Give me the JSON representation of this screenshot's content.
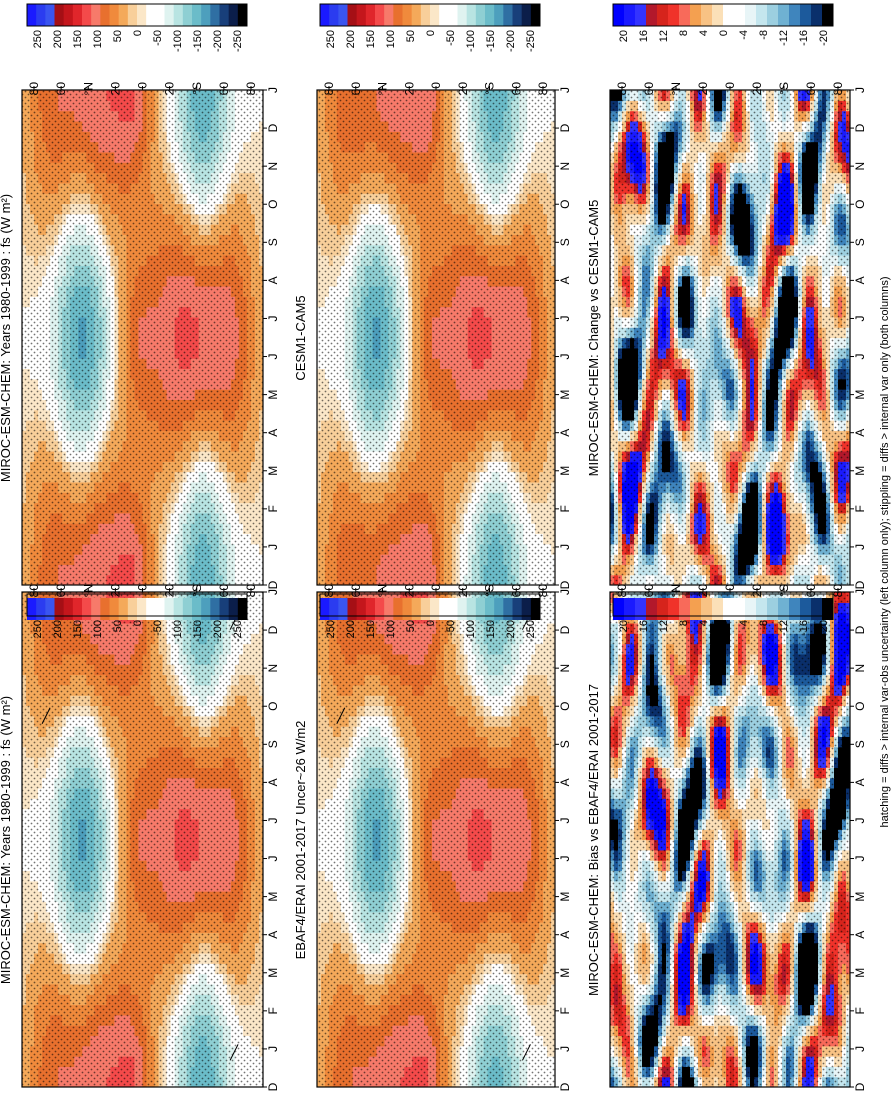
{
  "footer": "hatching = diffs > internal var-obs uncertainty (left column only); stippling = diffs > internal var only (both columns)",
  "colors": {
    "abs": [
      "#1a1aff",
      "#2b3cf0",
      "#3a55f0",
      "#a50f15",
      "#c4161c",
      "#e0262b",
      "#f44a4a",
      "#f77a6a",
      "#e8702e",
      "#f08a3c",
      "#f4a95a",
      "#f8cf9a",
      "#fbe7c8",
      "#ffffff",
      "#ffffff",
      "#dff3f0",
      "#b8e4e2",
      "#8ecfd3",
      "#6bbcc9",
      "#4d9fbd",
      "#2f6fa3",
      "#183f7a",
      "#0b1e4a",
      "#000000"
    ],
    "diff": [
      "#0000ff",
      "#1a1aff",
      "#3333ff",
      "#b2182b",
      "#d6241c",
      "#f0322a",
      "#f86a5a",
      "#f4a050",
      "#f8c284",
      "#fbe0b8",
      "#ffffff",
      "#ffffff",
      "#e8f5f7",
      "#c4e6ee",
      "#9ccfe0",
      "#6fb1d2",
      "#3f85bd",
      "#1c5a9c",
      "#0a2f6b",
      "#000000"
    ]
  },
  "chart_data": [
    {
      "type": "heatmap",
      "title": "MIROC-ESM-CHEM: Years 1980-1999 : fs (W m²)",
      "x": [
        "D",
        "J",
        "F",
        "M",
        "A",
        "M",
        "J",
        "J",
        "A",
        "S",
        "O",
        "N",
        "D",
        "J"
      ],
      "y_ticks": [
        "80",
        "60",
        "°N",
        "20",
        "0",
        "20",
        "°S",
        "60",
        "80"
      ],
      "y_range_deg": [
        90,
        -90
      ],
      "colorbar": [
        "250",
        "200",
        "150",
        "100",
        "50",
        "0",
        "-50",
        "-100",
        "-150",
        "-200",
        "-250"
      ],
      "field": "absolute",
      "hatching": true
    },
    {
      "type": "heatmap",
      "title": "MIROC-ESM-CHEM: Years 1980-1999 : fs (W m²)",
      "x": [
        "D",
        "J",
        "F",
        "M",
        "A",
        "M",
        "J",
        "J",
        "A",
        "S",
        "O",
        "N",
        "D",
        "J"
      ],
      "y_ticks": [
        "80",
        "60",
        "°N",
        "20",
        "0",
        "20",
        "°S",
        "60",
        "80"
      ],
      "y_range_deg": [
        90,
        -90
      ],
      "colorbar": [
        "250",
        "200",
        "150",
        "100",
        "50",
        "0",
        "-50",
        "-100",
        "-150",
        "-200",
        "-250"
      ],
      "field": "absolute",
      "hatching": false
    },
    {
      "type": "heatmap",
      "title": "EBAF4/ERAI 2001-2017 Uncer~26 W/m2",
      "x": [
        "D",
        "J",
        "F",
        "M",
        "A",
        "M",
        "J",
        "J",
        "A",
        "S",
        "O",
        "N",
        "D",
        "J"
      ],
      "y_ticks": [
        "80",
        "60",
        "°N",
        "20",
        "0",
        "20",
        "°S",
        "60",
        "80"
      ],
      "y_range_deg": [
        90,
        -90
      ],
      "colorbar": [
        "250",
        "200",
        "150",
        "100",
        "50",
        "0",
        "-50",
        "-100",
        "-150",
        "-200",
        "-250"
      ],
      "field": "absolute",
      "hatching": true
    },
    {
      "type": "heatmap",
      "title": "CESM1-CAM5",
      "x": [
        "D",
        "J",
        "F",
        "M",
        "A",
        "M",
        "J",
        "J",
        "A",
        "S",
        "O",
        "N",
        "D",
        "J"
      ],
      "y_ticks": [
        "80",
        "60",
        "°N",
        "20",
        "0",
        "20",
        "°S",
        "60",
        "80"
      ],
      "y_range_deg": [
        90,
        -90
      ],
      "colorbar": [
        "250",
        "200",
        "150",
        "100",
        "50",
        "0",
        "-50",
        "-100",
        "-150",
        "-200",
        "-250"
      ],
      "field": "absolute",
      "hatching": false
    },
    {
      "type": "heatmap",
      "title": "MIROC-ESM-CHEM: Bias vs EBAF4/ERAI 2001-2017",
      "x": [
        "D",
        "J",
        "F",
        "M",
        "A",
        "M",
        "J",
        "J",
        "A",
        "S",
        "O",
        "N",
        "D",
        "J"
      ],
      "y_ticks": [
        "80",
        "60",
        "°N",
        "20",
        "0",
        "20",
        "°S",
        "60",
        "80"
      ],
      "y_range_deg": [
        90,
        -90
      ],
      "colorbar": [
        "20",
        "16",
        "12",
        "8",
        "4",
        "0",
        "-4",
        "-8",
        "-12",
        "-16",
        "-20"
      ],
      "field": "bias",
      "hatching": false
    },
    {
      "type": "heatmap",
      "title": "MIROC-ESM-CHEM: Change vs CESM1-CAM5",
      "x": [
        "D",
        "J",
        "F",
        "M",
        "A",
        "M",
        "J",
        "J",
        "A",
        "S",
        "O",
        "N",
        "D",
        "J"
      ],
      "y_ticks": [
        "80",
        "60",
        "°N",
        "20",
        "0",
        "20",
        "°S",
        "60",
        "80"
      ],
      "y_range_deg": [
        90,
        -90
      ],
      "colorbar": [
        "20",
        "16",
        "12",
        "8",
        "4",
        "0",
        "-4",
        "-8",
        "-12",
        "-16",
        "-20"
      ],
      "field": "change",
      "hatching": false
    }
  ]
}
